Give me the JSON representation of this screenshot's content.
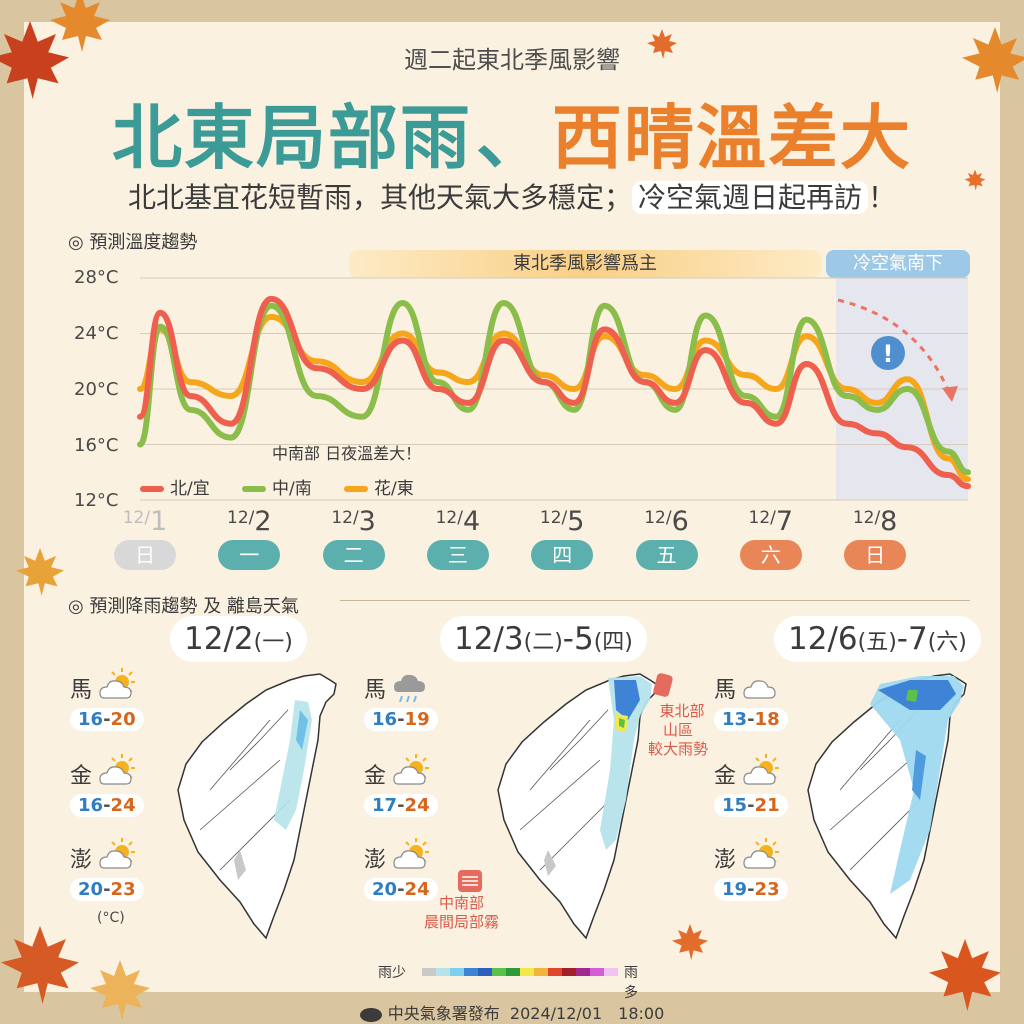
{
  "kicker": "週二起東北季風影響",
  "headline": {
    "part1": "北東局部雨",
    "sep": "、",
    "part2": "西晴溫差大"
  },
  "subline": {
    "main": "北北基宜花短暫雨，其他天氣大多穩定；",
    "highlight": "冷空氣週日起再訪",
    "end": "！"
  },
  "temp_section": "◎ 預測溫度趨勢",
  "rain_section": "◎ 預測降雨趨勢 及 離島天氣",
  "bands": {
    "monsoon": "東北季風影響爲主",
    "cold": "冷空氣南下"
  },
  "annotation": "中南部 日夜溫差大！",
  "alert": "!",
  "colors": {
    "north": "#ee5f4e",
    "central": "#8bbd4b",
    "east": "#f5a61b",
    "teal": "#5bb0ad",
    "orange": "#e98658",
    "past": "#d8d8d8"
  },
  "dates": [
    {
      "m": "12/",
      "d": "1",
      "day": "日",
      "tone": "past"
    },
    {
      "m": "12/",
      "d": "2",
      "day": "一",
      "tone": "teal"
    },
    {
      "m": "12/",
      "d": "3",
      "day": "二",
      "tone": "teal"
    },
    {
      "m": "12/",
      "d": "4",
      "day": "三",
      "tone": "teal"
    },
    {
      "m": "12/",
      "d": "5",
      "day": "四",
      "tone": "teal"
    },
    {
      "m": "12/",
      "d": "6",
      "day": "五",
      "tone": "teal"
    },
    {
      "m": "12/",
      "d": "7",
      "day": "六",
      "tone": "orange"
    },
    {
      "m": "12/",
      "d": "8",
      "day": "日",
      "tone": "orange"
    }
  ],
  "chart_data": {
    "type": "line",
    "title": "",
    "ylim": [
      12,
      28
    ],
    "yticks": [
      "12°C",
      "16°C",
      "20°C",
      "24°C",
      "28°C"
    ],
    "xlim": [
      0,
      8.2
    ],
    "legend": "bottom-left",
    "grid": true,
    "series": [
      {
        "name": "北/宜",
        "color": "#ee5f4e",
        "x": [
          0,
          0.2,
          0.5,
          0.9,
          1.3,
          1.75,
          2.2,
          2.6,
          2.95,
          3.25,
          3.6,
          4.0,
          4.3,
          4.6,
          5.0,
          5.3,
          5.6,
          6.0,
          6.3,
          6.6,
          7.0,
          7.3,
          7.6,
          8.0,
          8.2
        ],
        "y": [
          18,
          25.5,
          19.5,
          17.5,
          26.5,
          21.5,
          20,
          23.5,
          20,
          19,
          23.5,
          20.5,
          19,
          24.3,
          20.5,
          19,
          22.8,
          19,
          17.5,
          21.8,
          17.5,
          16.8,
          15.8,
          13.8,
          13
        ]
      },
      {
        "name": "中/南",
        "color": "#8bbd4b",
        "x": [
          0,
          0.2,
          0.5,
          0.9,
          1.3,
          1.75,
          2.2,
          2.6,
          2.95,
          3.25,
          3.6,
          4.0,
          4.3,
          4.6,
          5.0,
          5.3,
          5.6,
          6.0,
          6.3,
          6.6,
          7.0,
          7.3,
          7.6,
          8.0,
          8.2
        ],
        "y": [
          16,
          24.5,
          18.5,
          16.5,
          26,
          19.5,
          18,
          26.2,
          20.5,
          18.5,
          26.2,
          20.5,
          18.5,
          26,
          20.5,
          18.5,
          25.3,
          19.5,
          18,
          25,
          19.5,
          18.5,
          20,
          15.5,
          14
        ]
      },
      {
        "name": "花/東",
        "color": "#f5a61b",
        "x": [
          0,
          0.2,
          0.5,
          0.9,
          1.3,
          1.75,
          2.2,
          2.6,
          2.95,
          3.25,
          3.6,
          4.0,
          4.3,
          4.6,
          5.0,
          5.3,
          5.6,
          6.0,
          6.3,
          6.6,
          7.0,
          7.3,
          7.6,
          8.0,
          8.2
        ],
        "y": [
          20,
          24.3,
          20.5,
          19.5,
          25.2,
          22,
          20.5,
          24,
          21.2,
          20.5,
          24,
          21,
          20,
          23.8,
          21,
          20,
          23.5,
          21,
          20,
          23.8,
          20,
          19,
          20.7,
          15,
          13.5
        ]
      }
    ]
  },
  "periods": [
    {
      "date": "12/2",
      "sub": "(一)",
      "islands": [
        {
          "name": "馬",
          "lo": "16",
          "hi": "20",
          "icon": "sun-cloud-icon"
        },
        {
          "name": "金",
          "lo": "16",
          "hi": "24",
          "icon": "sun-cloud-icon"
        },
        {
          "name": "澎",
          "lo": "20",
          "hi": "23",
          "icon": "sun-cloud-icon"
        }
      ]
    },
    {
      "date": "12/3",
      "sub": "(二)",
      "date2": "-5",
      "sub2": "(四)",
      "islands": [
        {
          "name": "馬",
          "lo": "16",
          "hi": "19",
          "icon": "rain-cloud-icon"
        },
        {
          "name": "金",
          "lo": "17",
          "hi": "24",
          "icon": "sun-cloud-icon"
        },
        {
          "name": "澎",
          "lo": "20",
          "hi": "24",
          "icon": "sun-cloud-icon"
        }
      ]
    },
    {
      "date": "12/6",
      "sub": "(五)",
      "date2": "-7",
      "sub2": "(六)",
      "islands": [
        {
          "name": "馬",
          "lo": "13",
          "hi": "18",
          "icon": "cloud-icon"
        },
        {
          "name": "金",
          "lo": "15",
          "hi": "21",
          "icon": "sun-cloud-icon"
        },
        {
          "name": "澎",
          "lo": "19",
          "hi": "23",
          "icon": "sun-cloud-icon"
        }
      ]
    }
  ],
  "unit": "(°C)",
  "callout_ne": [
    "東北部",
    "山區",
    "較大雨勢"
  ],
  "callout_fog": [
    "中南部",
    "晨間局部霧"
  ],
  "scale": {
    "low": "雨少",
    "high": "雨多"
  },
  "footer": {
    "issuer": "中央氣象署發布",
    "stamp": "2024/12/01　18:00"
  }
}
